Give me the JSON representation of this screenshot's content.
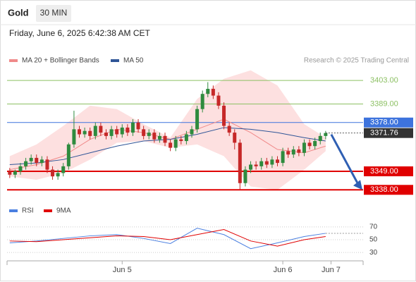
{
  "header": {
    "symbol": "Gold",
    "interval": "30 MIN",
    "timestamp": "Friday, June 6, 2025 6:42:38 AM CET"
  },
  "chart_data": [
    {
      "type": "candlestick",
      "attribution": "Research © 2025 Trading Central",
      "up_color": "#2e8b3e",
      "down_color": "#c62828",
      "open": [
        3349,
        3347,
        3349,
        3352,
        3355,
        3357,
        3354,
        3356,
        3350,
        3346,
        3348,
        3352,
        3365,
        3374,
        3371,
        3373,
        3370,
        3376,
        3372,
        3370,
        3374,
        3371,
        3375,
        3372,
        3378,
        3374,
        3370,
        3372,
        3368,
        3370,
        3366,
        3363,
        3368,
        3367,
        3371,
        3374,
        3386,
        3395,
        3398,
        3394,
        3388,
        3376,
        3372,
        3366,
        3342,
        3350,
        3353,
        3352,
        3355,
        3353,
        3356,
        3354,
        3361,
        3359,
        3362,
        3360,
        3366,
        3364,
        3367,
        3370
      ],
      "high": [
        3351,
        3350,
        3354,
        3357,
        3359,
        3359,
        3358,
        3358,
        3352,
        3350,
        3354,
        3366,
        3385,
        3376,
        3375,
        3375,
        3378,
        3378,
        3374,
        3376,
        3376,
        3377,
        3377,
        3380,
        3380,
        3376,
        3374,
        3374,
        3372,
        3372,
        3368,
        3370,
        3370,
        3373,
        3376,
        3388,
        3397,
        3402,
        3400,
        3396,
        3390,
        3378,
        3374,
        3368,
        3352,
        3355,
        3355,
        3357,
        3357,
        3358,
        3358,
        3363,
        3363,
        3364,
        3364,
        3368,
        3368,
        3369,
        3372,
        3373
      ],
      "low": [
        3345,
        3345,
        3347,
        3350,
        3353,
        3352,
        3352,
        3348,
        3344,
        3344,
        3346,
        3350,
        3363,
        3369,
        3369,
        3368,
        3368,
        3370,
        3368,
        3368,
        3369,
        3369,
        3370,
        3370,
        3372,
        3368,
        3368,
        3366,
        3366,
        3364,
        3361,
        3361,
        3365,
        3365,
        3369,
        3372,
        3384,
        3393,
        3392,
        3386,
        3374,
        3370,
        3362,
        3338,
        3340,
        3348,
        3350,
        3350,
        3351,
        3351,
        3352,
        3352,
        3357,
        3357,
        3358,
        3358,
        3362,
        3362,
        3365,
        3368
      ],
      "close": [
        3347,
        3349,
        3352,
        3355,
        3357,
        3354,
        3356,
        3350,
        3346,
        3348,
        3352,
        3365,
        3374,
        3371,
        3373,
        3370,
        3376,
        3372,
        3370,
        3374,
        3371,
        3375,
        3372,
        3378,
        3374,
        3370,
        3372,
        3368,
        3370,
        3366,
        3363,
        3368,
        3367,
        3371,
        3374,
        3386,
        3395,
        3398,
        3394,
        3388,
        3376,
        3372,
        3366,
        3342,
        3350,
        3353,
        3352,
        3355,
        3353,
        3356,
        3354,
        3361,
        3359,
        3362,
        3360,
        3366,
        3364,
        3367,
        3370,
        3371.76
      ],
      "xlim": [
        -0.5,
        66
      ],
      "ylim": [
        3331,
        3411
      ],
      "overlay_x": [
        0,
        5,
        10,
        15,
        20,
        25,
        30,
        35,
        40,
        45,
        50,
        55,
        59
      ],
      "series": [
        {
          "name": "MA 20 + Bollinger Bands",
          "color": "#f08a8a",
          "band_color": "#fde0e0",
          "values": [
            3350,
            3353,
            3358,
            3368,
            3374,
            3372,
            3368,
            3374,
            3380,
            3372,
            3362,
            3360,
            3364
          ],
          "upper": [
            3358,
            3365,
            3376,
            3388,
            3386,
            3377,
            3369,
            3392,
            3404,
            3409,
            3400,
            3377,
            3369
          ],
          "lower": [
            3346,
            3344,
            3348,
            3356,
            3366,
            3367,
            3363,
            3365,
            3358,
            3340,
            3338,
            3350,
            3361
          ]
        },
        {
          "name": "MA 50",
          "color": "#2f5597",
          "values": [
            3353,
            3354,
            3356,
            3360,
            3364,
            3367,
            3368,
            3371,
            3375,
            3374,
            3372,
            3369,
            3367
          ]
        }
      ],
      "levels": [
        {
          "value": 3403,
          "label": "3403.00",
          "color": "#8cc063",
          "boxed": false
        },
        {
          "value": 3389,
          "label": "3389.00",
          "color": "#8cc063",
          "boxed": false
        },
        {
          "value": 3378,
          "label": "3378.00",
          "color": "#3d73dd",
          "boxed": true
        },
        {
          "value": 3349,
          "label": "3349.00",
          "color": "#e00000",
          "boxed": true
        },
        {
          "value": 3338,
          "label": "3338.00",
          "color": "#e00000",
          "boxed": true
        }
      ],
      "current_price": 3371.76,
      "current_color": "#333333"
    },
    {
      "type": "line",
      "x": [
        0,
        5,
        10,
        15,
        20,
        25,
        30,
        35,
        40,
        45,
        50,
        55,
        59
      ],
      "series": [
        {
          "name": "RSI",
          "color": "#4a7fe0",
          "values": [
            45,
            48,
            52,
            56,
            58,
            52,
            44,
            68,
            58,
            36,
            45,
            55,
            60
          ]
        },
        {
          "name": "9MA",
          "color": "#e00000",
          "values": [
            48,
            47,
            50,
            53,
            56,
            55,
            50,
            58,
            66,
            48,
            40,
            50,
            55
          ]
        }
      ],
      "xlim": [
        -0.5,
        66
      ],
      "ylim": [
        18,
        82
      ],
      "yticks": [
        30,
        50,
        70
      ],
      "xticks": [
        {
          "value": 21,
          "label": "Jun 5"
        },
        {
          "value": 51,
          "label": "Jun 6"
        },
        {
          "value": 60,
          "label": "Jun 7"
        }
      ]
    }
  ]
}
